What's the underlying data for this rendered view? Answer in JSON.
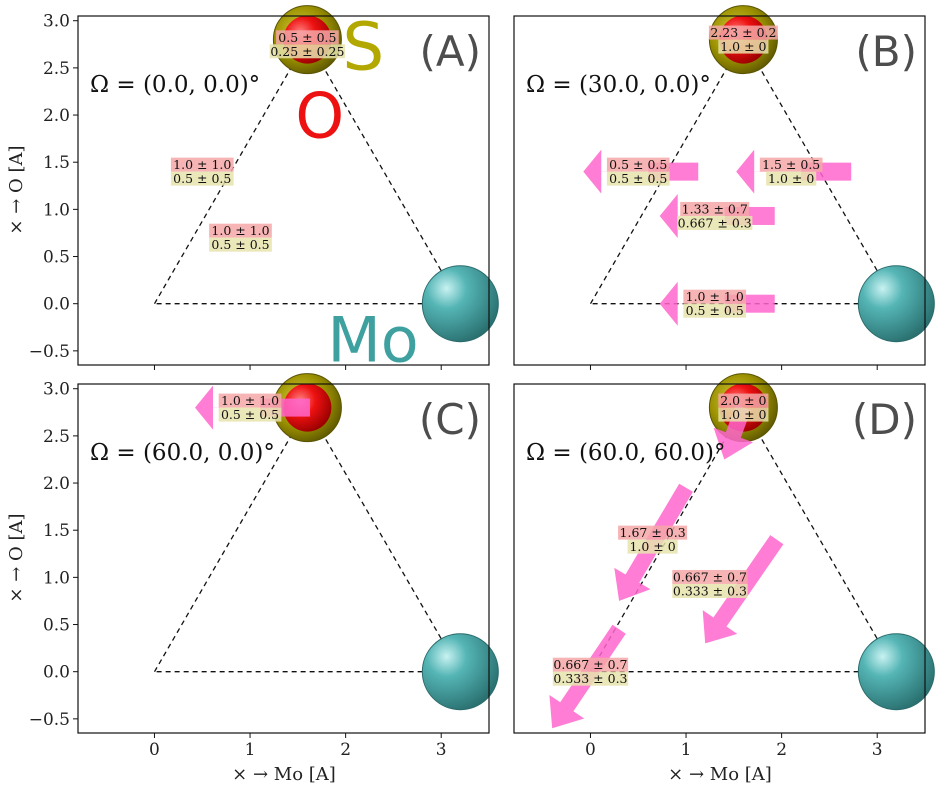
{
  "figure": {
    "xlabel": "× → Mo [A]",
    "ylabel": "× → O [A]"
  },
  "chart_data": [
    {
      "type": "scatter",
      "tag": "(A)",
      "annotation": "Ω = (0.0, 0.0)°",
      "xlim": [
        -0.8,
        3.5
      ],
      "ylim": [
        -0.65,
        3.05
      ],
      "xticks": [],
      "yticks": [
        "−0.5",
        "0.0",
        "0.5",
        "1.0",
        "1.5",
        "2.0",
        "2.5",
        "3.0"
      ],
      "triangle": [
        [
          0,
          0
        ],
        [
          1.6,
          2.8
        ],
        [
          3.2,
          0
        ]
      ],
      "atoms": [
        {
          "name": "S",
          "x": 1.6,
          "y": 2.8,
          "color": "#b3a800",
          "label": "S"
        },
        {
          "name": "O",
          "x": 1.6,
          "y": 2.8,
          "color": "#ee1111",
          "label": "O"
        },
        {
          "name": "Mo",
          "x": 3.2,
          "y": 0.0,
          "color": "#3fa0a0",
          "label": "Mo"
        }
      ],
      "points": [
        {
          "x": 1.6,
          "y": 2.75,
          "l1": "0.5 ± 0.5",
          "l2": "0.25 ± 0.25"
        },
        {
          "x": 0.5,
          "y": 1.4,
          "l1": "1.0 ± 1.0",
          "l2": "0.5 ± 0.5"
        },
        {
          "x": 0.9,
          "y": 0.7,
          "l1": "1.0 ± 1.0",
          "l2": "0.5 ± 0.5"
        }
      ]
    },
    {
      "type": "scatter",
      "tag": "(B)",
      "annotation": "Ω = (30.0, 0.0)°",
      "xlim": [
        -0.8,
        3.5
      ],
      "ylim": [
        -0.65,
        3.05
      ],
      "xticks": [],
      "yticks": [],
      "triangle": [
        [
          0,
          0
        ],
        [
          1.6,
          2.8
        ],
        [
          3.2,
          0
        ]
      ],
      "atoms": [
        {
          "name": "S",
          "x": 1.6,
          "y": 2.8,
          "color": "#b3a800"
        },
        {
          "name": "O",
          "x": 1.6,
          "y": 2.8,
          "color": "#ee1111"
        },
        {
          "name": "Mo",
          "x": 3.2,
          "y": 0.0,
          "color": "#3fa0a0"
        }
      ],
      "points": [
        {
          "x": 1.6,
          "y": 2.8,
          "l1": "2.23 ± 0.2",
          "l2": "1.0 ± 0",
          "arrow": [
            0,
            0
          ]
        },
        {
          "x": 0.5,
          "y": 1.4,
          "l1": "0.5 ± 0.5",
          "l2": "0.5 ± 0.5",
          "arrow": [
            0.5,
            0
          ]
        },
        {
          "x": 2.1,
          "y": 1.4,
          "l1": "1.5 ± 0.5",
          "l2": "1.0 ± 0",
          "arrow": [
            0.5,
            0
          ]
        },
        {
          "x": 1.3,
          "y": 0.93,
          "l1": "1.33 ± 0.7",
          "l2": "0.667 ± 0.3",
          "arrow": [
            0.5,
            0
          ]
        },
        {
          "x": 1.3,
          "y": 0.0,
          "l1": "1.0 ± 1.0",
          "l2": "0.5 ± 0.5",
          "arrow": [
            0.5,
            0
          ]
        }
      ]
    },
    {
      "type": "scatter",
      "tag": "(C)",
      "annotation": "Ω = (60.0, 0.0)°",
      "xlim": [
        -0.8,
        3.5
      ],
      "ylim": [
        -0.65,
        3.05
      ],
      "xticks": [
        "0",
        "1",
        "2",
        "3"
      ],
      "yticks": [
        "−0.5",
        "0.0",
        "0.5",
        "1.0",
        "1.5",
        "2.0",
        "2.5",
        "3.0"
      ],
      "triangle": [
        [
          0,
          0
        ],
        [
          1.6,
          2.8
        ],
        [
          3.2,
          0
        ]
      ],
      "atoms": [
        {
          "name": "S",
          "x": 1.6,
          "y": 2.8,
          "color": "#b3a800"
        },
        {
          "name": "O",
          "x": 1.6,
          "y": 2.8,
          "color": "#ee1111"
        },
        {
          "name": "Mo",
          "x": 3.2,
          "y": 0.0,
          "color": "#3fa0a0"
        }
      ],
      "points": [
        {
          "x": 1.0,
          "y": 2.8,
          "l1": "1.0 ± 1.0",
          "l2": "0.5 ± 0.5",
          "arrow": [
            2.1,
            0
          ]
        }
      ]
    },
    {
      "type": "scatter",
      "tag": "(D)",
      "annotation": "Ω = (60.0, 60.0)°",
      "xlim": [
        -0.8,
        3.5
      ],
      "ylim": [
        -0.65,
        3.05
      ],
      "xticks": [
        "0",
        "1",
        "2",
        "3"
      ],
      "yticks": [],
      "triangle": [
        [
          0,
          0
        ],
        [
          1.6,
          2.8
        ],
        [
          3.2,
          0
        ]
      ],
      "atoms": [
        {
          "name": "S",
          "x": 1.6,
          "y": 2.8,
          "color": "#b3a800"
        },
        {
          "name": "O",
          "x": 1.6,
          "y": 2.8,
          "color": "#ee1111"
        },
        {
          "name": "Mo",
          "x": 3.2,
          "y": 0.0,
          "color": "#3fa0a0"
        }
      ],
      "points": [
        {
          "x": 1.6,
          "y": 2.8,
          "l1": "2.0 ± 0",
          "l2": "1.0 ± 0",
          "arrow": [
            1.6,
            2.8,
            1.4,
            2.25
          ]
        },
        {
          "x": 0.65,
          "y": 1.4,
          "l1": "1.67 ± 0.3",
          "l2": "1.0 ± 0",
          "arrow": [
            1.0,
            1.95,
            0.3,
            0.75
          ]
        },
        {
          "x": 1.25,
          "y": 0.93,
          "l1": "0.667 ± 0.7",
          "l2": "0.333 ± 0.3",
          "arrow": [
            1.95,
            1.4,
            1.2,
            0.3
          ]
        },
        {
          "x": 0.0,
          "y": 0.0,
          "l1": "0.667 ± 0.7",
          "l2": "0.333 ± 0.3",
          "arrow": [
            0.3,
            0.45,
            -0.4,
            -0.6
          ]
        }
      ]
    }
  ]
}
